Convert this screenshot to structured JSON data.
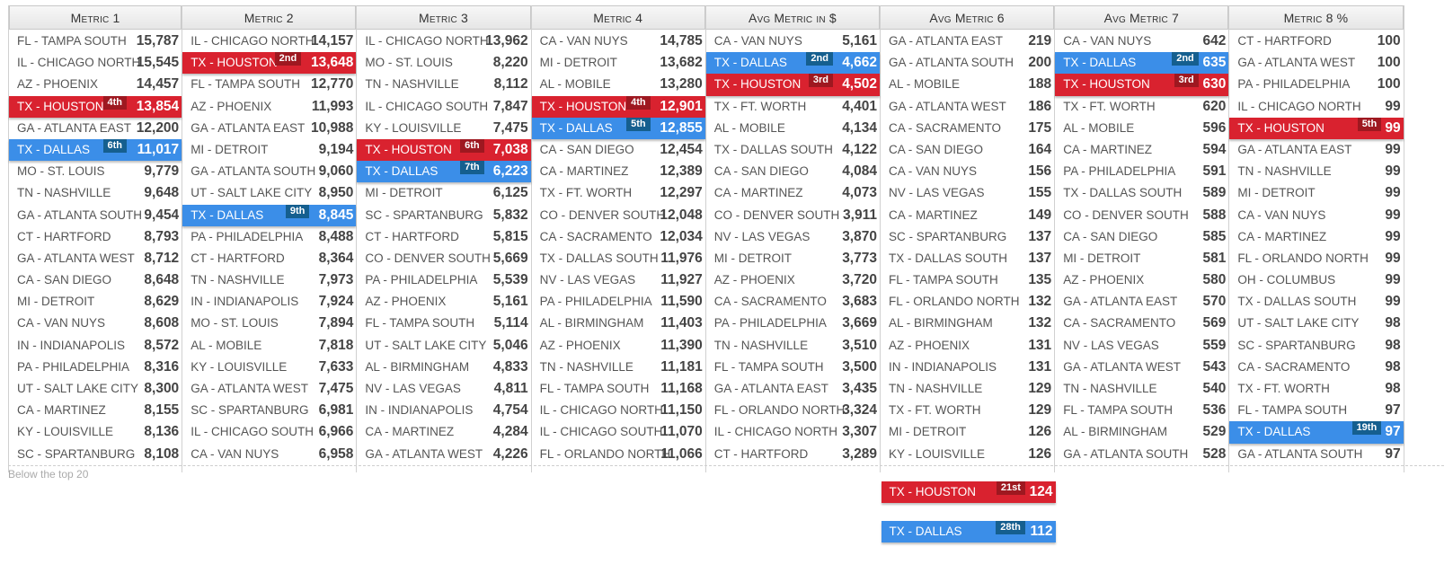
{
  "colors": {
    "houston": "#d9222f",
    "houston_badge": "#9e1820",
    "dallas": "#3b8ee8",
    "dallas_badge": "#155f8f"
  },
  "columns": [
    {
      "title": "Metric 1",
      "rows": [
        {
          "name": "FL - TAMPA SOUTH",
          "value": "15,787"
        },
        {
          "name": "IL - CHICAGO NORTH",
          "value": "15,545"
        },
        {
          "name": "AZ - PHOENIX",
          "value": "14,457"
        },
        {
          "name": "TX - HOUSTON",
          "value": "13,854",
          "rank": "4th",
          "hl": "houston"
        },
        {
          "name": "GA - ATLANTA EAST",
          "value": "12,200"
        },
        {
          "name": "TX - DALLAS",
          "value": "11,017",
          "rank": "6th",
          "hl": "dallas"
        },
        {
          "name": "MO - ST. LOUIS",
          "value": "9,779"
        },
        {
          "name": "TN - NASHVILLE",
          "value": "9,648"
        },
        {
          "name": "GA - ATLANTA SOUTH",
          "value": "9,454"
        },
        {
          "name": "CT - HARTFORD",
          "value": "8,793"
        },
        {
          "name": "GA - ATLANTA WEST",
          "value": "8,712"
        },
        {
          "name": "CA - SAN DIEGO",
          "value": "8,648"
        },
        {
          "name": "MI - DETROIT",
          "value": "8,629"
        },
        {
          "name": "CA - VAN NUYS",
          "value": "8,608"
        },
        {
          "name": "IN - INDIANAPOLIS",
          "value": "8,572"
        },
        {
          "name": "PA - PHILADELPHIA",
          "value": "8,316"
        },
        {
          "name": "UT - SALT LAKE CITY",
          "value": "8,300"
        },
        {
          "name": "CA - MARTINEZ",
          "value": "8,155"
        },
        {
          "name": "KY - LOUISVILLE",
          "value": "8,136"
        },
        {
          "name": "SC - SPARTANBURG",
          "value": "8,108"
        }
      ]
    },
    {
      "title": "Metric 2",
      "rows": [
        {
          "name": "IL - CHICAGO NORTH",
          "value": "14,157"
        },
        {
          "name": "TX - HOUSTON",
          "value": "13,648",
          "rank": "2nd",
          "hl": "houston"
        },
        {
          "name": "FL - TAMPA SOUTH",
          "value": "12,770"
        },
        {
          "name": "AZ - PHOENIX",
          "value": "11,993"
        },
        {
          "name": "GA - ATLANTA EAST",
          "value": "10,988"
        },
        {
          "name": "MI - DETROIT",
          "value": "9,194"
        },
        {
          "name": "GA - ATLANTA SOUTH",
          "value": "9,060"
        },
        {
          "name": "UT - SALT LAKE CITY",
          "value": "8,950"
        },
        {
          "name": "TX - DALLAS",
          "value": "8,845",
          "rank": "9th",
          "hl": "dallas"
        },
        {
          "name": "PA - PHILADELPHIA",
          "value": "8,488"
        },
        {
          "name": "CT - HARTFORD",
          "value": "8,364"
        },
        {
          "name": "TN - NASHVILLE",
          "value": "7,973"
        },
        {
          "name": "IN - INDIANAPOLIS",
          "value": "7,924"
        },
        {
          "name": "MO - ST. LOUIS",
          "value": "7,894"
        },
        {
          "name": "AL - MOBILE",
          "value": "7,818"
        },
        {
          "name": "KY - LOUISVILLE",
          "value": "7,633"
        },
        {
          "name": "GA - ATLANTA WEST",
          "value": "7,475"
        },
        {
          "name": "SC - SPARTANBURG",
          "value": "6,981"
        },
        {
          "name": "IL - CHICAGO SOUTH",
          "value": "6,966"
        },
        {
          "name": "CA - VAN NUYS",
          "value": "6,958"
        }
      ]
    },
    {
      "title": "Metric 3",
      "rows": [
        {
          "name": "IL - CHICAGO NORTH",
          "value": "13,962"
        },
        {
          "name": "MO - ST. LOUIS",
          "value": "8,220"
        },
        {
          "name": "TN - NASHVILLE",
          "value": "8,112"
        },
        {
          "name": "IL - CHICAGO SOUTH",
          "value": "7,847"
        },
        {
          "name": "KY - LOUISVILLE",
          "value": "7,475"
        },
        {
          "name": "TX - HOUSTON",
          "value": "7,038",
          "rank": "6th",
          "hl": "houston"
        },
        {
          "name": "TX - DALLAS",
          "value": "6,223",
          "rank": "7th",
          "hl": "dallas"
        },
        {
          "name": "MI - DETROIT",
          "value": "6,125"
        },
        {
          "name": "SC - SPARTANBURG",
          "value": "5,832"
        },
        {
          "name": "CT - HARTFORD",
          "value": "5,815"
        },
        {
          "name": "CO - DENVER SOUTH",
          "value": "5,669"
        },
        {
          "name": "PA - PHILADELPHIA",
          "value": "5,539"
        },
        {
          "name": "AZ - PHOENIX",
          "value": "5,161"
        },
        {
          "name": "FL - TAMPA SOUTH",
          "value": "5,114"
        },
        {
          "name": "UT - SALT LAKE CITY",
          "value": "5,046"
        },
        {
          "name": "AL - BIRMINGHAM",
          "value": "4,833"
        },
        {
          "name": "NV - LAS VEGAS",
          "value": "4,811"
        },
        {
          "name": "IN - INDIANAPOLIS",
          "value": "4,754"
        },
        {
          "name": "CA - MARTINEZ",
          "value": "4,284"
        },
        {
          "name": "GA - ATLANTA WEST",
          "value": "4,226"
        }
      ]
    },
    {
      "title": "Metric 4",
      "rows": [
        {
          "name": "CA - VAN NUYS",
          "value": "14,785"
        },
        {
          "name": "MI - DETROIT",
          "value": "13,682"
        },
        {
          "name": "AL - MOBILE",
          "value": "13,280"
        },
        {
          "name": "TX - HOUSTON",
          "value": "12,901",
          "rank": "4th",
          "hl": "houston"
        },
        {
          "name": "TX - DALLAS",
          "value": "12,855",
          "rank": "5th",
          "hl": "dallas"
        },
        {
          "name": "CA - SAN DIEGO",
          "value": "12,454"
        },
        {
          "name": "CA - MARTINEZ",
          "value": "12,389"
        },
        {
          "name": "TX - FT. WORTH",
          "value": "12,297"
        },
        {
          "name": "CO - DENVER SOUTH",
          "value": "12,048"
        },
        {
          "name": "CA - SACRAMENTO",
          "value": "12,034"
        },
        {
          "name": "TX - DALLAS SOUTH",
          "value": "11,976"
        },
        {
          "name": "NV - LAS VEGAS",
          "value": "11,927"
        },
        {
          "name": "PA - PHILADELPHIA",
          "value": "11,590"
        },
        {
          "name": "AL - BIRMINGHAM",
          "value": "11,403"
        },
        {
          "name": "AZ - PHOENIX",
          "value": "11,390"
        },
        {
          "name": "TN - NASHVILLE",
          "value": "11,181"
        },
        {
          "name": "FL - TAMPA SOUTH",
          "value": "11,168"
        },
        {
          "name": "IL - CHICAGO NORTH",
          "value": "11,150"
        },
        {
          "name": "IL - CHICAGO SOUTH",
          "value": "11,070"
        },
        {
          "name": "FL - ORLANDO NORTH",
          "value": "11,066"
        }
      ]
    },
    {
      "title": "Avg Metric in $",
      "rows": [
        {
          "name": "CA - VAN NUYS",
          "value": "5,161"
        },
        {
          "name": "TX - DALLAS",
          "value": "4,662",
          "rank": "2nd",
          "hl": "dallas"
        },
        {
          "name": "TX - HOUSTON",
          "value": "4,502",
          "rank": "3rd",
          "hl": "houston"
        },
        {
          "name": "TX - FT. WORTH",
          "value": "4,401"
        },
        {
          "name": "AL - MOBILE",
          "value": "4,134"
        },
        {
          "name": "TX - DALLAS SOUTH",
          "value": "4,122"
        },
        {
          "name": "CA - SAN DIEGO",
          "value": "4,084"
        },
        {
          "name": "CA - MARTINEZ",
          "value": "4,073"
        },
        {
          "name": "CO - DENVER SOUTH",
          "value": "3,911"
        },
        {
          "name": "NV - LAS VEGAS",
          "value": "3,870"
        },
        {
          "name": "MI - DETROIT",
          "value": "3,773"
        },
        {
          "name": "AZ - PHOENIX",
          "value": "3,720"
        },
        {
          "name": "CA - SACRAMENTO",
          "value": "3,683"
        },
        {
          "name": "PA - PHILADELPHIA",
          "value": "3,669"
        },
        {
          "name": "TN - NASHVILLE",
          "value": "3,510"
        },
        {
          "name": "FL - TAMPA SOUTH",
          "value": "3,500"
        },
        {
          "name": "GA - ATLANTA EAST",
          "value": "3,435"
        },
        {
          "name": "FL - ORLANDO NORTH",
          "value": "3,324"
        },
        {
          "name": "IL - CHICAGO NORTH",
          "value": "3,307"
        },
        {
          "name": "CT - HARTFORD",
          "value": "3,289"
        }
      ]
    },
    {
      "title": "Avg Metric 6",
      "rows": [
        {
          "name": "GA - ATLANTA EAST",
          "value": "219"
        },
        {
          "name": "GA - ATLANTA SOUTH",
          "value": "200"
        },
        {
          "name": "AL - MOBILE",
          "value": "188"
        },
        {
          "name": "GA - ATLANTA WEST",
          "value": "186"
        },
        {
          "name": "CA - SACRAMENTO",
          "value": "175"
        },
        {
          "name": "CA - SAN DIEGO",
          "value": "164"
        },
        {
          "name": "CA - VAN NUYS",
          "value": "156"
        },
        {
          "name": "NV - LAS VEGAS",
          "value": "155"
        },
        {
          "name": "CA - MARTINEZ",
          "value": "149"
        },
        {
          "name": "SC - SPARTANBURG",
          "value": "137"
        },
        {
          "name": "TX - DALLAS SOUTH",
          "value": "137"
        },
        {
          "name": "FL - TAMPA SOUTH",
          "value": "135"
        },
        {
          "name": "FL - ORLANDO NORTH",
          "value": "132"
        },
        {
          "name": "AL - BIRMINGHAM",
          "value": "132"
        },
        {
          "name": "AZ - PHOENIX",
          "value": "131"
        },
        {
          "name": "IN - INDIANAPOLIS",
          "value": "131"
        },
        {
          "name": "TN - NASHVILLE",
          "value": "129"
        },
        {
          "name": "TX - FT. WORTH",
          "value": "129"
        },
        {
          "name": "MI - DETROIT",
          "value": "126"
        },
        {
          "name": "KY - LOUISVILLE",
          "value": "126"
        }
      ]
    },
    {
      "title": "Avg Metric 7",
      "rows": [
        {
          "name": "CA - VAN NUYS",
          "value": "642"
        },
        {
          "name": "TX - DALLAS",
          "value": "635",
          "rank": "2nd",
          "hl": "dallas"
        },
        {
          "name": "TX - HOUSTON",
          "value": "630",
          "rank": "3rd",
          "hl": "houston"
        },
        {
          "name": "TX - FT. WORTH",
          "value": "620"
        },
        {
          "name": "AL - MOBILE",
          "value": "596"
        },
        {
          "name": "CA - MARTINEZ",
          "value": "594"
        },
        {
          "name": "PA - PHILADELPHIA",
          "value": "591"
        },
        {
          "name": "TX - DALLAS SOUTH",
          "value": "589"
        },
        {
          "name": "CO - DENVER SOUTH",
          "value": "588"
        },
        {
          "name": "CA - SAN DIEGO",
          "value": "585"
        },
        {
          "name": "MI - DETROIT",
          "value": "581"
        },
        {
          "name": "AZ - PHOENIX",
          "value": "580"
        },
        {
          "name": "GA - ATLANTA EAST",
          "value": "570"
        },
        {
          "name": "CA - SACRAMENTO",
          "value": "569"
        },
        {
          "name": "NV - LAS VEGAS",
          "value": "559"
        },
        {
          "name": "GA - ATLANTA WEST",
          "value": "543"
        },
        {
          "name": "TN - NASHVILLE",
          "value": "540"
        },
        {
          "name": "FL - TAMPA SOUTH",
          "value": "536"
        },
        {
          "name": "AL - BIRMINGHAM",
          "value": "529"
        },
        {
          "name": "GA - ATLANTA SOUTH",
          "value": "528"
        }
      ]
    },
    {
      "title": "Metric 8 %",
      "rows": [
        {
          "name": "CT - HARTFORD",
          "value": "100"
        },
        {
          "name": "GA - ATLANTA WEST",
          "value": "100"
        },
        {
          "name": "PA - PHILADELPHIA",
          "value": "100"
        },
        {
          "name": "IL - CHICAGO NORTH",
          "value": "99"
        },
        {
          "name": "TX - HOUSTON",
          "value": "99",
          "rank": "5th",
          "hl": "houston"
        },
        {
          "name": "GA - ATLANTA EAST",
          "value": "99"
        },
        {
          "name": "TN - NASHVILLE",
          "value": "99"
        },
        {
          "name": "MI - DETROIT",
          "value": "99"
        },
        {
          "name": "CA - VAN NUYS",
          "value": "99"
        },
        {
          "name": "CA - MARTINEZ",
          "value": "99"
        },
        {
          "name": "FL - ORLANDO NORTH",
          "value": "99"
        },
        {
          "name": "OH - COLUMBUS",
          "value": "99"
        },
        {
          "name": "TX - DALLAS SOUTH",
          "value": "99"
        },
        {
          "name": "UT - SALT LAKE CITY",
          "value": "98"
        },
        {
          "name": "SC - SPARTANBURG",
          "value": "98"
        },
        {
          "name": "CA - SACRAMENTO",
          "value": "98"
        },
        {
          "name": "TX - FT. WORTH",
          "value": "98"
        },
        {
          "name": "FL - TAMPA SOUTH",
          "value": "97"
        },
        {
          "name": "TX - DALLAS",
          "value": "97",
          "rank": "19th",
          "hl": "dallas"
        },
        {
          "name": "GA - ATLANTA SOUTH",
          "value": "97"
        }
      ]
    }
  ],
  "below_label": "Below the top 20",
  "below_items": [
    {
      "column": 5,
      "name": "TX - HOUSTON",
      "value": "124",
      "rank": "21st",
      "hl": "houston"
    },
    {
      "column": 5,
      "name": "TX - DALLAS",
      "value": "112",
      "rank": "28th",
      "hl": "dallas"
    }
  ]
}
